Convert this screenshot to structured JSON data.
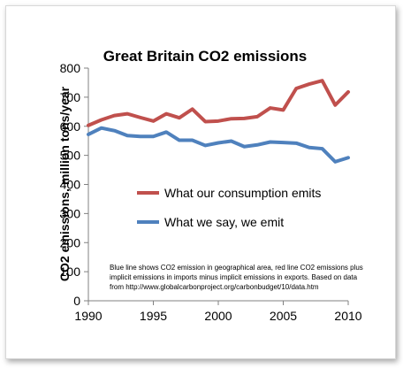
{
  "chart_data": {
    "type": "line",
    "title": "Great Britain CO2 emissions",
    "ylabel": "CO2 emissions, million tons/year",
    "xlabel": "",
    "xlim": [
      1990,
      2010
    ],
    "ylim": [
      0,
      800
    ],
    "x_ticks": [
      "1990",
      "1995",
      "2000",
      "2005",
      "2010"
    ],
    "y_ticks": [
      "0",
      "100",
      "200",
      "300",
      "400",
      "500",
      "600",
      "700",
      "800"
    ],
    "grid": false,
    "legend_position": "center-right",
    "x": [
      1990,
      1991,
      1992,
      1993,
      1994,
      1995,
      1996,
      1997,
      1998,
      1999,
      2000,
      2001,
      2002,
      2003,
      2004,
      2005,
      2006,
      2007,
      2008,
      2009,
      2010
    ],
    "series": [
      {
        "name": "What our consumption emits",
        "color": "#c0504d",
        "values": [
          603,
          622,
          637,
          643,
          630,
          618,
          643,
          629,
          659,
          616,
          618,
          626,
          627,
          633,
          663,
          656,
          730,
          745,
          757,
          673,
          718
        ]
      },
      {
        "name": "What we say, we emit",
        "color": "#4f81bd",
        "values": [
          572,
          594,
          585,
          568,
          565,
          565,
          580,
          552,
          552,
          534,
          543,
          549,
          530,
          536,
          546,
          544,
          542,
          527,
          523,
          478,
          492
        ]
      }
    ],
    "annotation": [
      "Blue line shows CO2 emission in geographical area, red line CO2 emissions plus",
      "implicit emissions in imports minus implicit emissions in exports. Based on data",
      "from http://www.globalcarbonproject.org/carbonbudget/10/data.htm"
    ]
  }
}
